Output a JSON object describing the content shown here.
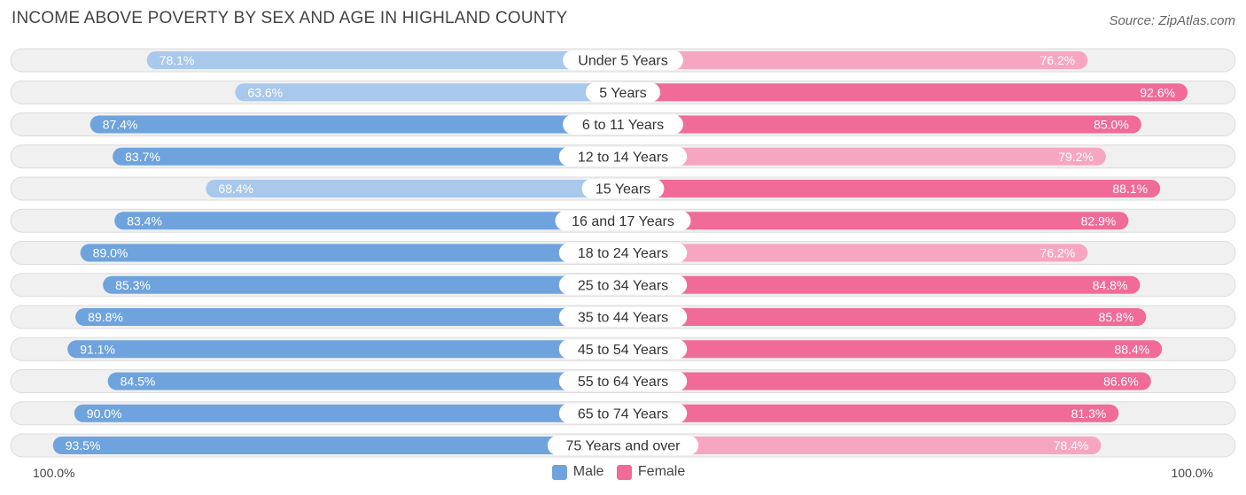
{
  "chart_data": {
    "type": "bar",
    "orientation": "horizontal-diverging",
    "title": "INCOME ABOVE POVERTY BY SEX AND AGE IN HIGHLAND COUNTY",
    "source": "Source: ZipAtlas.com",
    "categories": [
      "Under 5 Years",
      "5 Years",
      "6 to 11 Years",
      "12 to 14 Years",
      "15 Years",
      "16 and 17 Years",
      "18 to 24 Years",
      "25 to 34 Years",
      "35 to 44 Years",
      "45 to 54 Years",
      "55 to 64 Years",
      "65 to 74 Years",
      "75 Years and over"
    ],
    "series": [
      {
        "name": "Male",
        "values": [
          78.1,
          63.6,
          87.4,
          83.7,
          68.4,
          83.4,
          89.0,
          85.3,
          89.8,
          91.1,
          84.5,
          90.0,
          93.5
        ]
      },
      {
        "name": "Female",
        "values": [
          76.2,
          92.6,
          85.0,
          79.2,
          88.1,
          82.9,
          76.2,
          84.8,
          85.8,
          88.4,
          86.6,
          81.3,
          78.4
        ]
      }
    ],
    "value_labels": {
      "male": [
        "78.1%",
        "63.6%",
        "87.4%",
        "83.7%",
        "68.4%",
        "83.4%",
        "89.0%",
        "85.3%",
        "89.8%",
        "91.1%",
        "84.5%",
        "90.0%",
        "93.5%"
      ],
      "female": [
        "76.2%",
        "92.6%",
        "85.0%",
        "79.2%",
        "88.1%",
        "82.9%",
        "76.2%",
        "84.8%",
        "85.8%",
        "88.4%",
        "86.6%",
        "81.3%",
        "78.4%"
      ]
    },
    "xlim": [
      0,
      100
    ],
    "axis_left_label": "100.0%",
    "axis_right_label": "100.0%",
    "legend": [
      "Male",
      "Female"
    ],
    "legend_position": "bottom-center"
  },
  "colors": {
    "male_strong": "#6fa3dd",
    "male_light": "#a8c8ec",
    "female_strong": "#f06b97",
    "female_light": "#f7a6c1",
    "track": "#f0f0f0",
    "track_border": "#dcdcdc"
  }
}
